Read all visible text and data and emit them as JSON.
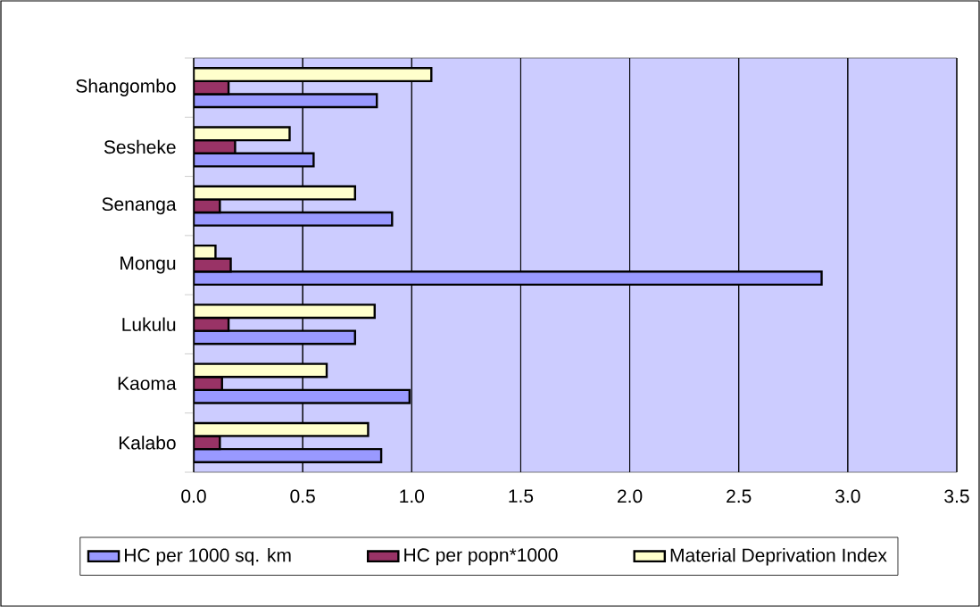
{
  "chart_data": {
    "type": "bar",
    "orientation": "horizontal",
    "categories": [
      "Shangombo",
      "Sesheke",
      "Senanga",
      "Mongu",
      "Lukulu",
      "Kaoma",
      "Kalabo"
    ],
    "series": [
      {
        "name": "HC per 1000 sq. km",
        "color": "#9999ff",
        "values": [
          0.84,
          0.55,
          0.91,
          2.88,
          0.74,
          0.99,
          0.86
        ]
      },
      {
        "name": "HC per popn*1000",
        "color": "#993366",
        "values": [
          0.16,
          0.19,
          0.12,
          0.17,
          0.16,
          0.13,
          0.12
        ]
      },
      {
        "name": "Material Deprivation Index",
        "color": "#ffffcc",
        "values": [
          1.09,
          0.44,
          0.74,
          0.1,
          0.83,
          0.61,
          0.8
        ]
      }
    ],
    "xlim": [
      0,
      3.5
    ],
    "xticks": [
      {
        "value": 0,
        "label": "0.0"
      },
      {
        "value": 0.5,
        "label": "0.5"
      },
      {
        "value": 1,
        "label": "1.0"
      },
      {
        "value": 1.5,
        "label": "1.5"
      },
      {
        "value": 2,
        "label": "2.0"
      },
      {
        "value": 2.5,
        "label": "2.5"
      },
      {
        "value": 3,
        "label": "3.0"
      },
      {
        "value": 3.5,
        "label": "3.5"
      }
    ],
    "grid": "x",
    "legend": "bottom"
  }
}
